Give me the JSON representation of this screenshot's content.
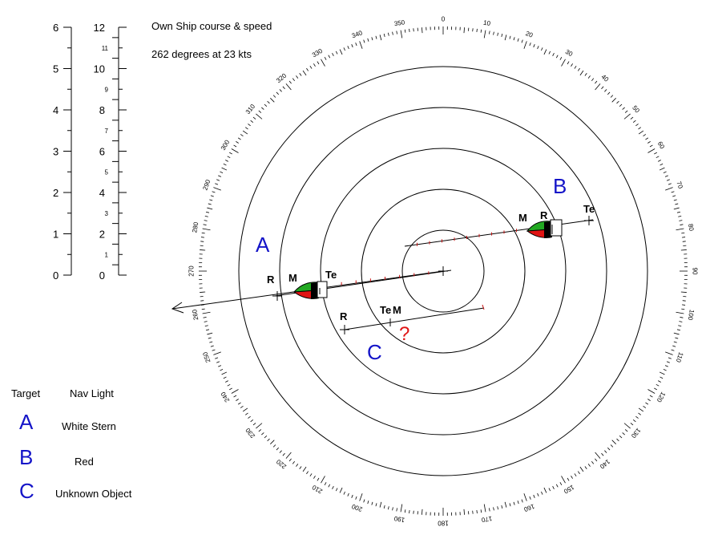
{
  "own_ship": {
    "title": "Own Ship course & speed",
    "value": "262 degrees at 23 kts"
  },
  "scales": {
    "left_labels": [
      "0",
      "1",
      "2",
      "3",
      "4",
      "5",
      "6"
    ],
    "right_major_labels": [
      "0",
      "2",
      "4",
      "6",
      "8",
      "10",
      "12"
    ],
    "right_minor_labels": [
      "1",
      "3",
      "5",
      "7",
      "9",
      "11"
    ]
  },
  "compass": {
    "bearing_labels": [
      "0",
      "10",
      "20",
      "30",
      "40",
      "50",
      "60",
      "70",
      "80",
      "90",
      "100",
      "110",
      "120",
      "130",
      "140",
      "150",
      "160",
      "170",
      "180",
      "190",
      "200",
      "210",
      "220",
      "230",
      "240",
      "250",
      "260",
      "270",
      "280",
      "290",
      "300",
      "310",
      "320",
      "330",
      "340",
      "350"
    ],
    "range_rings": 5,
    "own_heading_deg": 262
  },
  "targets": [
    {
      "id": "A",
      "label": "A",
      "marks": [
        "R",
        "M",
        "Te"
      ],
      "hull_colors": [
        "#22a822",
        "#e01414"
      ]
    },
    {
      "id": "B",
      "label": "B",
      "marks": [
        "M",
        "R",
        "Te"
      ],
      "hull_colors": [
        "#22a822",
        "#e01414"
      ]
    },
    {
      "id": "C",
      "label": "C",
      "marks": [
        "R",
        "Te",
        "M"
      ],
      "unknown_symbol": "?"
    }
  ],
  "legend": {
    "header_target": "Target",
    "header_light": "Nav Light",
    "rows": [
      {
        "target": "A",
        "light": "White Stern"
      },
      {
        "target": "B",
        "light": "Red"
      },
      {
        "target": "C",
        "light": "Unknown Object"
      }
    ]
  },
  "colors": {
    "label_blue": "#1414c8",
    "question_red": "#e01414",
    "tick_red": "#c81414"
  }
}
